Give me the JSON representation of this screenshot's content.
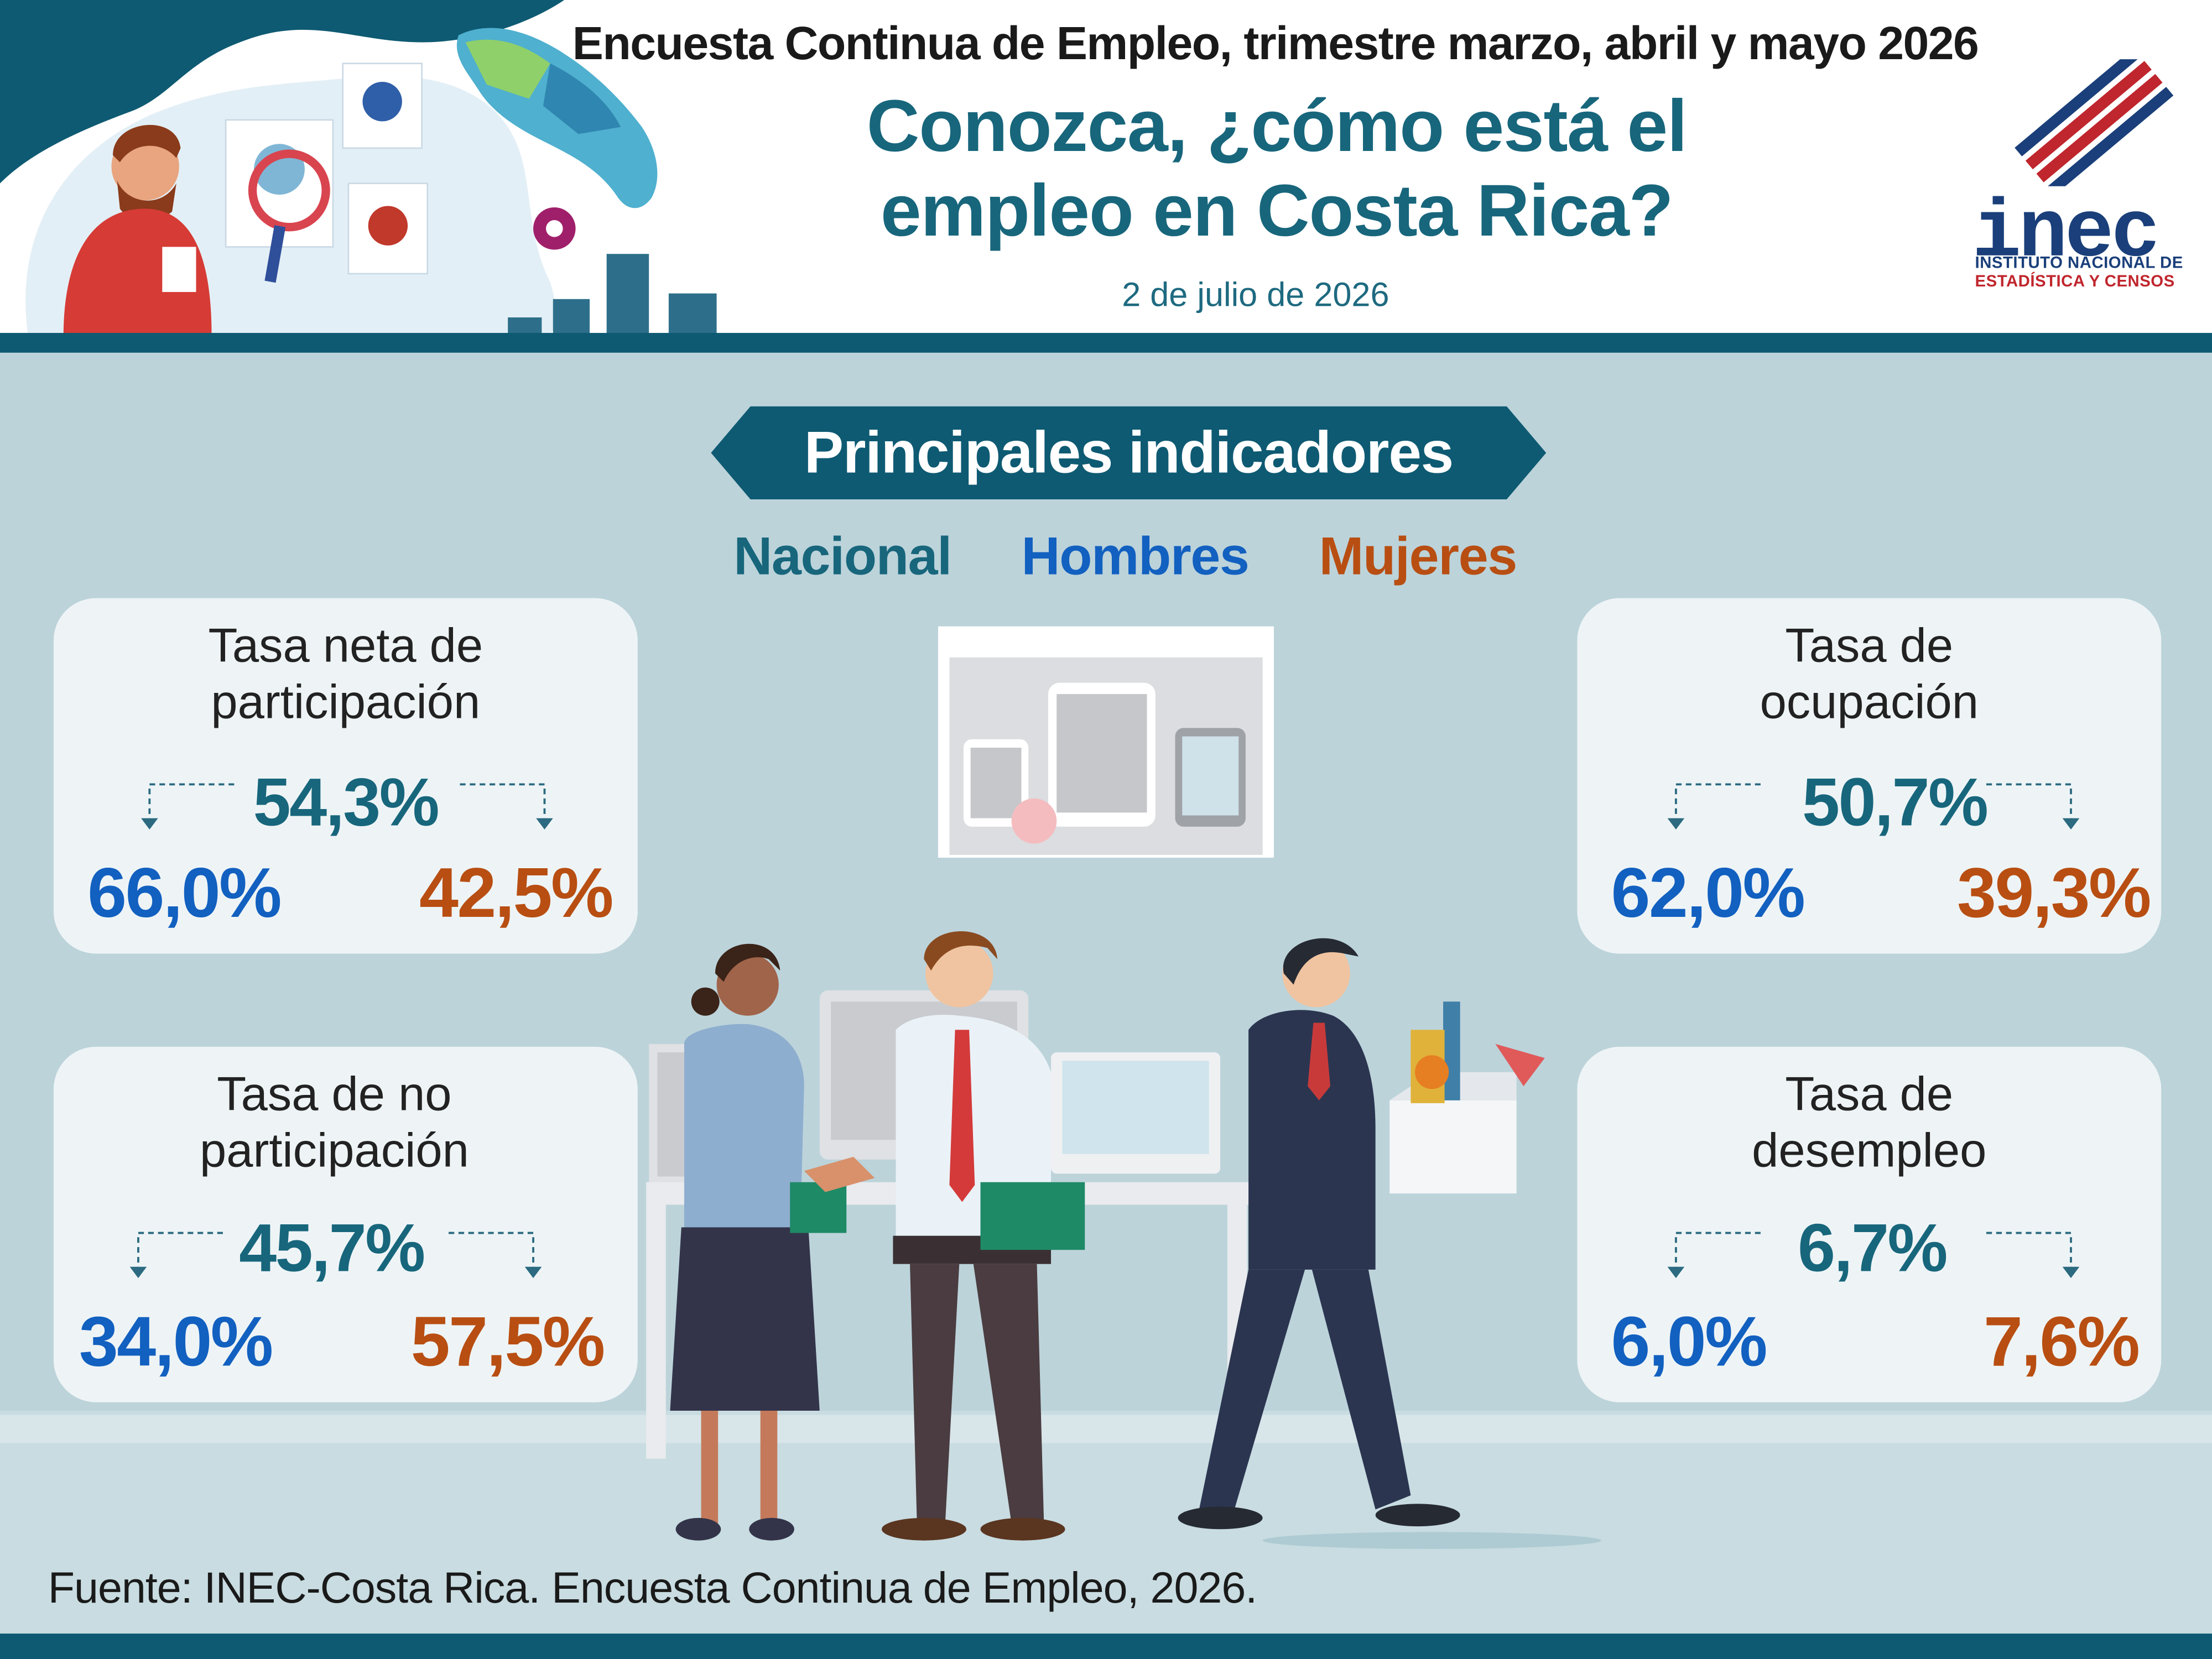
{
  "header": {
    "survey_line": "Encuesta Continua de Empleo, trimestre marzo, abril y mayo 2026",
    "title_line1": "Conozca, ¿cómo está el",
    "title_line2": "empleo en Costa Rica?",
    "date": "2 de julio de 2026"
  },
  "logo": {
    "text": "inec",
    "sub_line1": "INSTITUTO NACIONAL DE",
    "sub_line2": "ESTADÍSTICA Y CENSOS"
  },
  "ribbon": {
    "label": "Principales indicadores"
  },
  "legend": {
    "national": "Nacional",
    "men": "Hombres",
    "women": "Mujeres"
  },
  "colors": {
    "national": "#17667c",
    "men": "#1260c0",
    "women": "#b84e12",
    "brand_dark": "#0e5a72",
    "background": "#bcd3da"
  },
  "indicators": {
    "participation": {
      "title_line1": "Tasa neta de",
      "title_line2": "participación",
      "national": "54,3%",
      "men": "66,0%",
      "women": "42,5%"
    },
    "non_participation": {
      "title_line1": "Tasa de no",
      "title_line2": "participación",
      "national": "45,7%",
      "men": "34,0%",
      "women": "57,5%"
    },
    "occupation": {
      "title_line1": "Tasa de",
      "title_line2": "ocupación",
      "national": "50,7%",
      "men": "62,0%",
      "women": "39,3%"
    },
    "unemployment": {
      "title_line1": "Tasa de",
      "title_line2": "desempleo",
      "national": "6,7%",
      "men": "6,0%",
      "women": "7,6%"
    }
  },
  "footer": {
    "source": "Fuente: INEC-Costa Rica. Encuesta Continua de Empleo, 2026."
  }
}
